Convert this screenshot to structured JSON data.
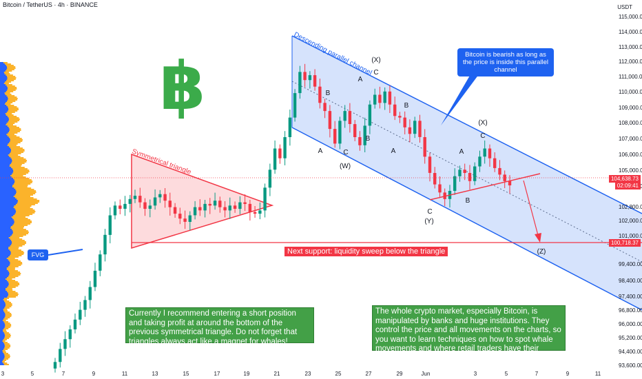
{
  "header": {
    "title": "Bitcoin / TetherUS · 4h · BINANCE",
    "currency": "USDT"
  },
  "y_axis": [
    "115,000.00",
    "114,000.00",
    "113,000.00",
    "112,000.00",
    "111,000.00",
    "110,000.00",
    "109,000.00",
    "108,000.00",
    "107,000.00",
    "106,000.00",
    "105,000.00",
    "104,000.00",
    "102,800.00",
    "102,000.00",
    "101,000.00",
    "99,400.00",
    "98,400.00",
    "97,400.00",
    "96,800.00",
    "96,000.00",
    "95,200.00",
    "94,400.00",
    "93,600.00"
  ],
  "x_axis": [
    "3",
    "5",
    "7",
    "9",
    "11",
    "13",
    "15",
    "17",
    "19",
    "21",
    "23",
    "25",
    "27",
    "29",
    "Jun",
    "3",
    "5",
    "7",
    "9",
    "11"
  ],
  "price_tags": {
    "current": "104,638.73",
    "countdown": "02:09:41",
    "support": "100,718.37"
  },
  "colors": {
    "up": "#089981",
    "down": "#f23645",
    "channel": "#1e62f0",
    "triangle": "#f23645",
    "profile_blue": "#2962ff",
    "profile_yellow": "#fbb32b",
    "logo": "#3bab4a"
  },
  "labels": {
    "channel": "Descending parallel channel",
    "triangle": "Symmetrical triangle",
    "fvg": "FVG",
    "support": "Next support: liquidity sweep below the triangle",
    "bearish": "Bitcoin is bearish as long as the price is inside this parallel channel",
    "note_left": "Currently I recommend entering a short position and taking profit at around the bottom of the previous symmetrical triangle. Do not forget that triangles always act like a magnet for whales!",
    "note_right": "The whole crypto market, especially Bitcoin, is manipulated by banks and huge institutions. They control the price and all movements on the charts, so you want to learn techniques on how to spot whale movements and where retail traders have their orders to become a successful trader!",
    "logo_symbol": "฿"
  },
  "waves": [
    "A",
    "B",
    "C",
    "(W)",
    "B",
    "A",
    "C",
    "(X)",
    "A",
    "B",
    "C",
    "(Y)",
    "A",
    "B",
    "C",
    "(X)",
    "(Z)"
  ],
  "chart_data": {
    "type": "candlestick",
    "title": "Bitcoin / TetherUS · 4h · BINANCE",
    "y_range": [
      93600,
      115000
    ],
    "closes": [
      93800,
      94600,
      95200,
      95800,
      96400,
      97000,
      97600,
      98400,
      99400,
      100400,
      101600,
      102800,
      103400,
      103200,
      103500,
      103800,
      104000,
      103600,
      103200,
      103400,
      103900,
      104100,
      103700,
      103300,
      102900,
      102600,
      102400,
      102800,
      103300,
      103100,
      103500,
      103400,
      103700,
      103300,
      103100,
      103400,
      103200,
      103600,
      103500,
      103000,
      102900,
      103100,
      104500,
      105600,
      106900,
      106300,
      107600,
      108800,
      110300,
      111600,
      111100,
      111400,
      110700,
      109700,
      109200,
      108100,
      107200,
      108600,
      109200,
      108400,
      107600,
      107100,
      108300,
      109600,
      110200,
      109700,
      110400,
      109600,
      108900,
      108800,
      108200,
      107800,
      108600,
      107600,
      106400,
      105400,
      104700,
      104200,
      103800,
      104300,
      105200,
      105600,
      105400,
      104900,
      105800,
      106400,
      106900,
      106300,
      105700,
      105300,
      104900,
      104638
    ],
    "channel_upper": {
      "start": 113000,
      "end": 101500
    },
    "channel_lower": {
      "start": 107800,
      "end": 96800
    },
    "support_level": 100718.37,
    "current_price": 104638.73
  }
}
